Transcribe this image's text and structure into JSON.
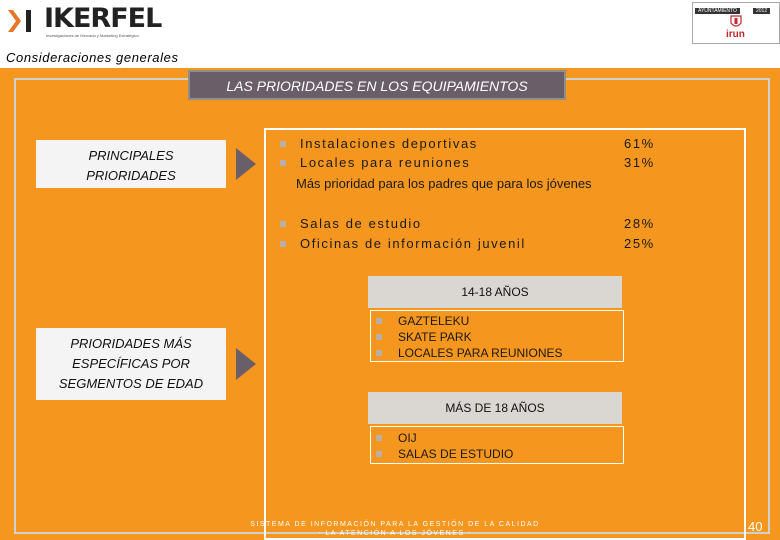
{
  "header": {
    "logo_text": "IKERFEL",
    "logo_tagline": "Investigaciones de Mercado y Marketing Estratégico",
    "partner_logo_top": "AYUNTAMIENTO",
    "partner_logo_top_right": "2012",
    "partner_logo_name": "irun"
  },
  "section": {
    "title": "Consideraciones generales"
  },
  "slide": {
    "title": "LAS PRIORIDADES EN LOS EQUIPAMIENTOS",
    "principal_label_line1": "PRINCIPALES",
    "principal_label_line2": "PRIORIDADES",
    "specific_label_line1": "PRIORIDADES MÁS",
    "specific_label_line2": "ESPECÍFICAS POR",
    "specific_label_line3": "SEGMENTOS DE EDAD",
    "priorities_group1": [
      {
        "label": "Instalaciones deportivas",
        "value": "61%"
      },
      {
        "label": "Locales para reuniones",
        "value": "31%"
      }
    ],
    "priorities_note": "Más prioridad para los padres que para los jóvenes",
    "priorities_group2": [
      {
        "label": "Salas de estudio",
        "value": "28%"
      },
      {
        "label": "Oficinas de información juvenil",
        "value": "25%"
      }
    ],
    "age_group1": {
      "title": "14-18 AÑOS",
      "items": [
        "GAZTELEKU",
        "SKATE PARK",
        "LOCALES PARA REUNIONES"
      ]
    },
    "age_group2": {
      "title": "MÁS DE 18 AÑOS",
      "items": [
        "OIJ",
        "SALAS DE ESTUDIO"
      ]
    }
  },
  "footer": {
    "line1": "SISTEMA DE INFORMACIÓN PARA LA GESTIÓN DE LA CALIDAD",
    "line2": "- LA ATENCIÓN A LOS JÓVENES -",
    "page_number": "40"
  },
  "colors": {
    "panel": "#f5961e",
    "title_bar": "#6a5f68",
    "label_box": "#f4f4f4",
    "group_bar": "#dad6d2"
  }
}
